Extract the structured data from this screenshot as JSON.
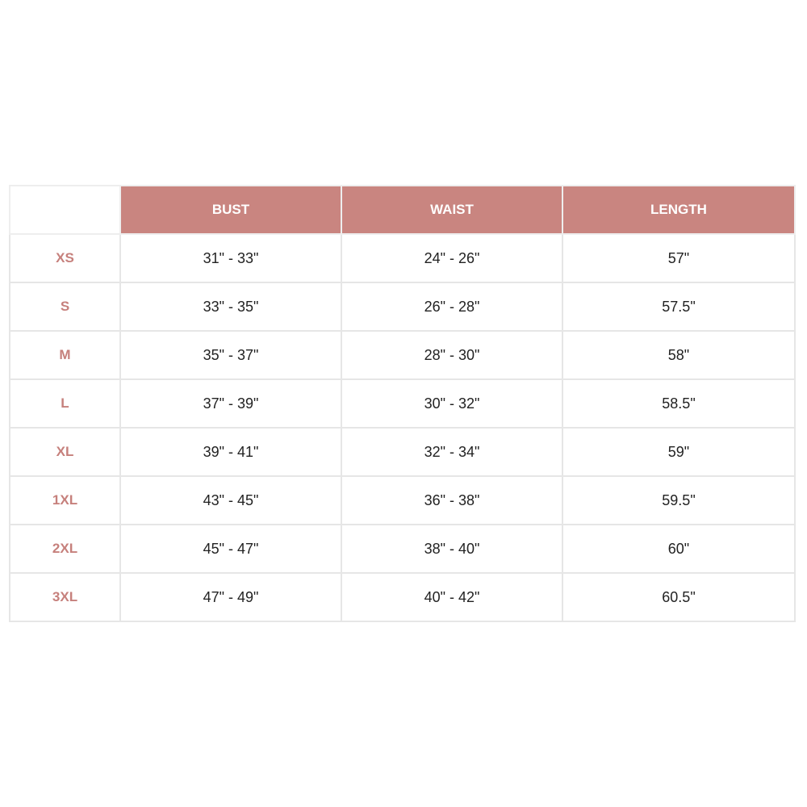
{
  "colors": {
    "header_bg": "#c98580",
    "size_label": "#c6807c",
    "border": "#e6e6e6"
  },
  "table": {
    "headers": [
      "BUST",
      "WAIST",
      "LENGTH"
    ],
    "rows": [
      {
        "size": "XS",
        "bust": "31\" - 33\"",
        "waist": "24\" - 26\"",
        "length": "57\""
      },
      {
        "size": "S",
        "bust": "33\" - 35\"",
        "waist": "26\" - 28\"",
        "length": "57.5\""
      },
      {
        "size": "M",
        "bust": "35\" - 37\"",
        "waist": "28\" - 30\"",
        "length": "58\""
      },
      {
        "size": "L",
        "bust": "37\" - 39\"",
        "waist": "30\" - 32\"",
        "length": "58.5\""
      },
      {
        "size": "XL",
        "bust": "39\" - 41\"",
        "waist": "32\" - 34\"",
        "length": "59\""
      },
      {
        "size": "1XL",
        "bust": "43\" - 45\"",
        "waist": "36\" - 38\"",
        "length": "59.5\""
      },
      {
        "size": "2XL",
        "bust": "45\" - 47\"",
        "waist": "38\" - 40\"",
        "length": "60\""
      },
      {
        "size": "3XL",
        "bust": "47\" - 49\"",
        "waist": "40\" - 42\"",
        "length": "60.5\""
      }
    ]
  }
}
